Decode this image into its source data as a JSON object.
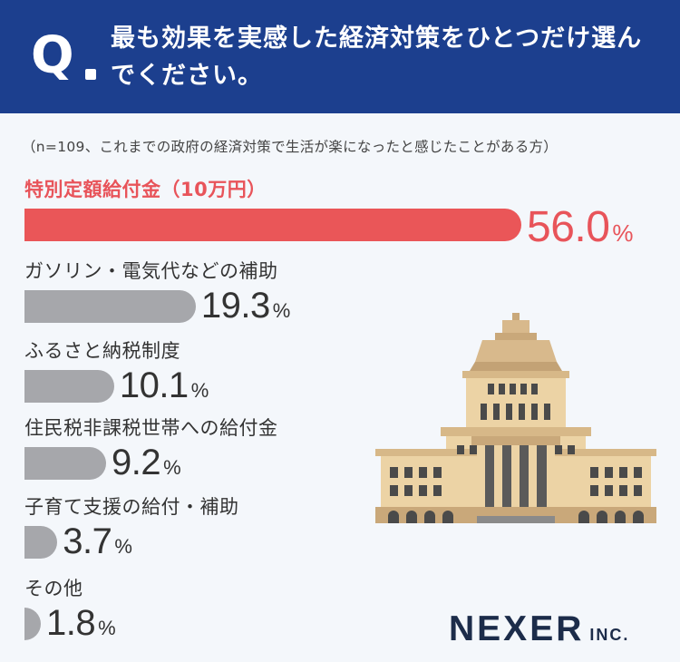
{
  "header": {
    "q_mark": "Q",
    "question": "最も効果を実感した経済対策をひとつだけ選んでください。"
  },
  "note": "（n=109、これまでの政府の経済対策で生活が楽になったと感じたことがある方）",
  "chart_data": {
    "type": "bar",
    "orientation": "horizontal",
    "categories": [
      "特別定額給付金（10万円）",
      "ガソリン・電気代などの補助",
      "ふるさと納税制度",
      "住民税非課税世帯への給付金",
      "子育て支援の給付・補助",
      "その他"
    ],
    "values": [
      56.0,
      19.3,
      10.1,
      9.2,
      3.7,
      1.8
    ],
    "value_labels": [
      "56.0",
      "19.3",
      "10.1",
      "9.2",
      "3.7",
      "1.8"
    ],
    "unit": "%",
    "highlight_index": 0,
    "colors": {
      "highlight": "#ea5658",
      "default": "#a6a7ab",
      "header": "#1c3f8e"
    },
    "xlim": [
      0,
      100
    ]
  },
  "brand": {
    "name": "NEXER",
    "suffix": "INC."
  }
}
